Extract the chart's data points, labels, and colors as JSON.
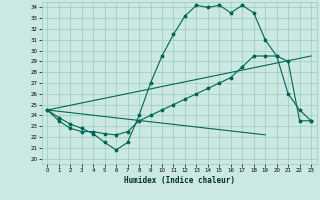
{
  "title": "",
  "xlabel": "Humidex (Indice chaleur)",
  "xlim": [
    -0.5,
    23.5
  ],
  "ylim": [
    19.5,
    34.5
  ],
  "xticks": [
    0,
    1,
    2,
    3,
    4,
    5,
    6,
    7,
    8,
    9,
    10,
    11,
    12,
    13,
    14,
    15,
    16,
    17,
    18,
    19,
    20,
    21,
    22,
    23
  ],
  "yticks": [
    20,
    21,
    22,
    23,
    24,
    25,
    26,
    27,
    28,
    29,
    30,
    31,
    32,
    33,
    34
  ],
  "bg_color": "#cce8e2",
  "grid_color": "#99ccbb",
  "line_color": "#006655",
  "series1_x": [
    0,
    1,
    2,
    3,
    4,
    5,
    6,
    7,
    8,
    9,
    10,
    11,
    12,
    13,
    14,
    15,
    16,
    17,
    18,
    19,
    20,
    21,
    22,
    23
  ],
  "series1_y": [
    24.5,
    23.8,
    23.2,
    22.8,
    22.3,
    21.5,
    20.8,
    21.5,
    24.0,
    27.0,
    29.5,
    31.5,
    33.2,
    34.2,
    34.0,
    34.2,
    33.5,
    34.2,
    33.5,
    31.0,
    29.5,
    26.0,
    24.5,
    23.5
  ],
  "series2_x": [
    0,
    1,
    2,
    3,
    4,
    5,
    6,
    7,
    8,
    9,
    10,
    11,
    12,
    13,
    14,
    15,
    16,
    17,
    18,
    19,
    20,
    21,
    22,
    23
  ],
  "series2_y": [
    24.5,
    23.5,
    22.8,
    22.5,
    22.5,
    22.3,
    22.2,
    22.5,
    23.5,
    24.0,
    24.5,
    25.0,
    25.5,
    26.0,
    26.5,
    27.0,
    27.5,
    28.5,
    29.5,
    29.5,
    29.5,
    29.0,
    23.5,
    23.5
  ],
  "series3_x": [
    0,
    23
  ],
  "series3_y": [
    24.5,
    29.5
  ],
  "series4_x": [
    0,
    19
  ],
  "series4_y": [
    24.5,
    22.2
  ]
}
